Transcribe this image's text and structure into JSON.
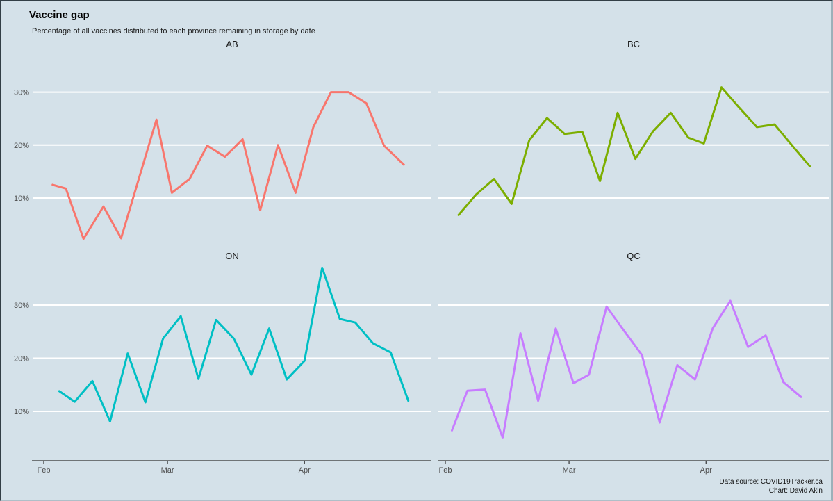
{
  "chart_data": {
    "type": "line",
    "title": "Vaccine gap",
    "subtitle": "Percentage of all vaccines distributed to each province remaining in storage by date",
    "caption_lines": [
      "Data source: COVID19Tracker.ca",
      "Chart: David Akin"
    ],
    "facet_layout": "2x2 small multiples by province",
    "background_color": "#d4e1e9",
    "gridline_color": "#ffffff",
    "axis_color": "#333333",
    "x_axis": {
      "unit": "date (days since Feb 1)",
      "range_days": [
        0,
        87
      ],
      "ticks": [
        {
          "label": "Feb",
          "day": 0
        },
        {
          "label": "Mar",
          "day": 28
        },
        {
          "label": "Apr",
          "day": 59
        }
      ]
    },
    "y_axis": {
      "unit": "percent remaining in storage",
      "ticks": [
        {
          "label": "10%",
          "value": 10
        },
        {
          "label": "20%",
          "value": 20
        },
        {
          "label": "30%",
          "value": 30
        }
      ]
    },
    "series": [
      {
        "name": "AB",
        "color": "#F8766D",
        "points": [
          [
            2,
            12.5
          ],
          [
            5,
            11.8
          ],
          [
            9,
            2.3
          ],
          [
            13.5,
            8.4
          ],
          [
            17.5,
            2.4
          ],
          [
            25.5,
            24.8
          ],
          [
            29,
            11.0
          ],
          [
            33,
            13.6
          ],
          [
            37,
            19.9
          ],
          [
            41,
            17.8
          ],
          [
            45,
            21.1
          ],
          [
            49,
            7.7
          ],
          [
            53,
            20.0
          ],
          [
            57,
            11.0
          ],
          [
            61,
            23.4
          ],
          [
            65,
            30.0
          ],
          [
            69,
            30.0
          ],
          [
            73,
            27.9
          ],
          [
            77,
            19.9
          ],
          [
            81.5,
            16.3
          ]
        ]
      },
      {
        "name": "BC",
        "color": "#7CAE00",
        "points": [
          [
            3,
            6.8
          ],
          [
            7,
            10.7
          ],
          [
            11,
            13.6
          ],
          [
            15,
            8.9
          ],
          [
            19,
            20.9
          ],
          [
            23,
            25.1
          ],
          [
            27,
            22.1
          ],
          [
            31,
            22.5
          ],
          [
            35,
            13.2
          ],
          [
            39,
            26.1
          ],
          [
            43,
            17.4
          ],
          [
            47,
            22.6
          ],
          [
            51,
            26.1
          ],
          [
            55,
            21.4
          ],
          [
            58.5,
            20.3
          ],
          [
            62.5,
            30.9
          ],
          [
            66.5,
            27.1
          ],
          [
            70.5,
            23.4
          ],
          [
            74.5,
            23.9
          ],
          [
            78.5,
            19.9
          ],
          [
            82.5,
            16.0
          ]
        ]
      },
      {
        "name": "ON",
        "color": "#00BFC4",
        "points": [
          [
            3.5,
            13.8
          ],
          [
            7,
            11.8
          ],
          [
            11,
            15.7
          ],
          [
            15,
            8.1
          ],
          [
            19,
            20.9
          ],
          [
            23,
            11.7
          ],
          [
            27,
            23.7
          ],
          [
            31,
            27.9
          ],
          [
            35,
            16.1
          ],
          [
            39,
            27.2
          ],
          [
            43,
            23.7
          ],
          [
            47,
            16.9
          ],
          [
            51,
            25.6
          ],
          [
            55,
            16.0
          ],
          [
            59,
            19.5
          ],
          [
            63,
            37.0
          ],
          [
            67,
            27.4
          ],
          [
            70.5,
            26.7
          ],
          [
            74.5,
            22.8
          ],
          [
            78.5,
            21.1
          ],
          [
            82.5,
            12.0
          ]
        ]
      },
      {
        "name": "QC",
        "color": "#C77CFF",
        "points": [
          [
            1.5,
            6.4
          ],
          [
            5,
            13.9
          ],
          [
            9,
            14.1
          ],
          [
            13,
            5.0
          ],
          [
            17,
            24.7
          ],
          [
            21,
            12.0
          ],
          [
            25,
            25.6
          ],
          [
            29,
            15.3
          ],
          [
            32.5,
            16.9
          ],
          [
            36.5,
            29.7
          ],
          [
            40.5,
            25.1
          ],
          [
            44.5,
            20.6
          ],
          [
            48.5,
            7.9
          ],
          [
            52.5,
            18.7
          ],
          [
            56.5,
            16.0
          ],
          [
            60.5,
            25.6
          ],
          [
            64.5,
            30.8
          ],
          [
            68.5,
            22.1
          ],
          [
            72.5,
            24.3
          ],
          [
            76.5,
            15.5
          ],
          [
            80.5,
            12.7
          ]
        ]
      }
    ]
  }
}
